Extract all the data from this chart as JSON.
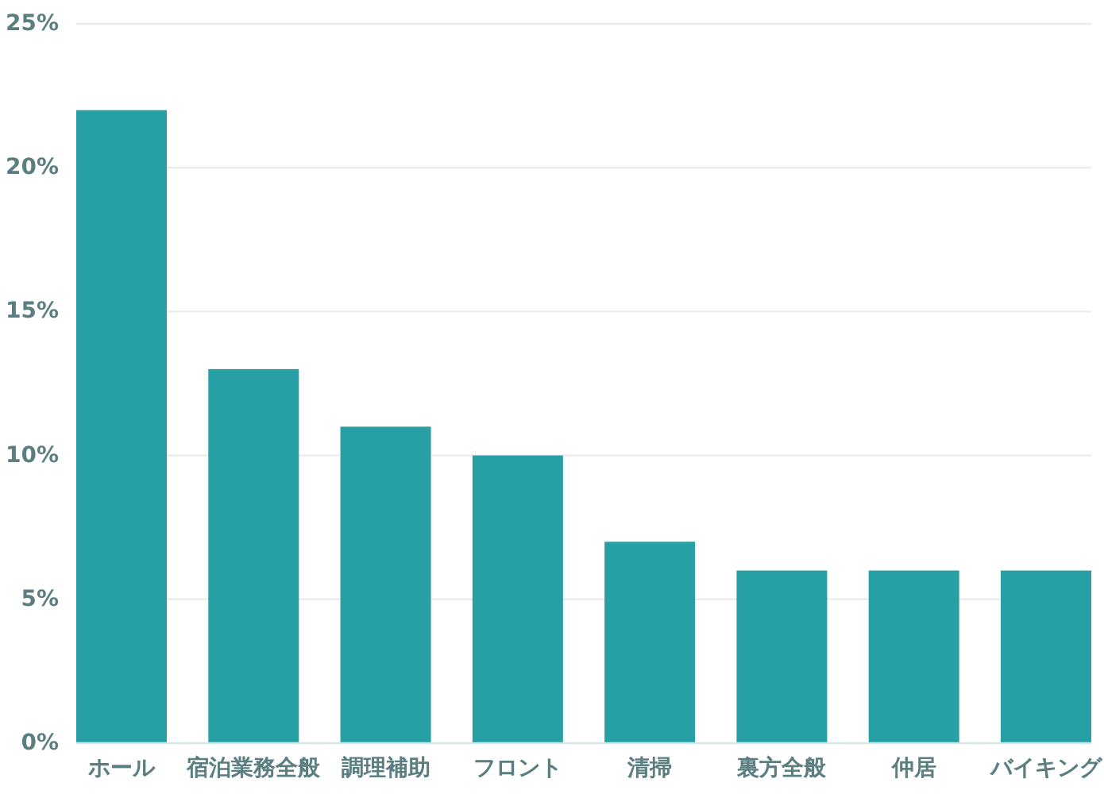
{
  "chart_data": {
    "type": "bar",
    "categories": [
      "ホール",
      "宿泊業務全般",
      "調理補助",
      "フロント",
      "清掃",
      "裏方全般",
      "仲居",
      "バイキング"
    ],
    "values": [
      22,
      13,
      11,
      10,
      7,
      6,
      6,
      6
    ],
    "color": "#26a0a4",
    "ylim": [
      0,
      25
    ],
    "yticks": [
      {
        "value": 0,
        "label": "0%"
      },
      {
        "value": 5,
        "label": "5%"
      },
      {
        "value": 10,
        "label": "10%"
      },
      {
        "value": 15,
        "label": "15%"
      },
      {
        "value": 20,
        "label": "20%"
      },
      {
        "value": 25,
        "label": "25%"
      }
    ],
    "grid": "y"
  }
}
